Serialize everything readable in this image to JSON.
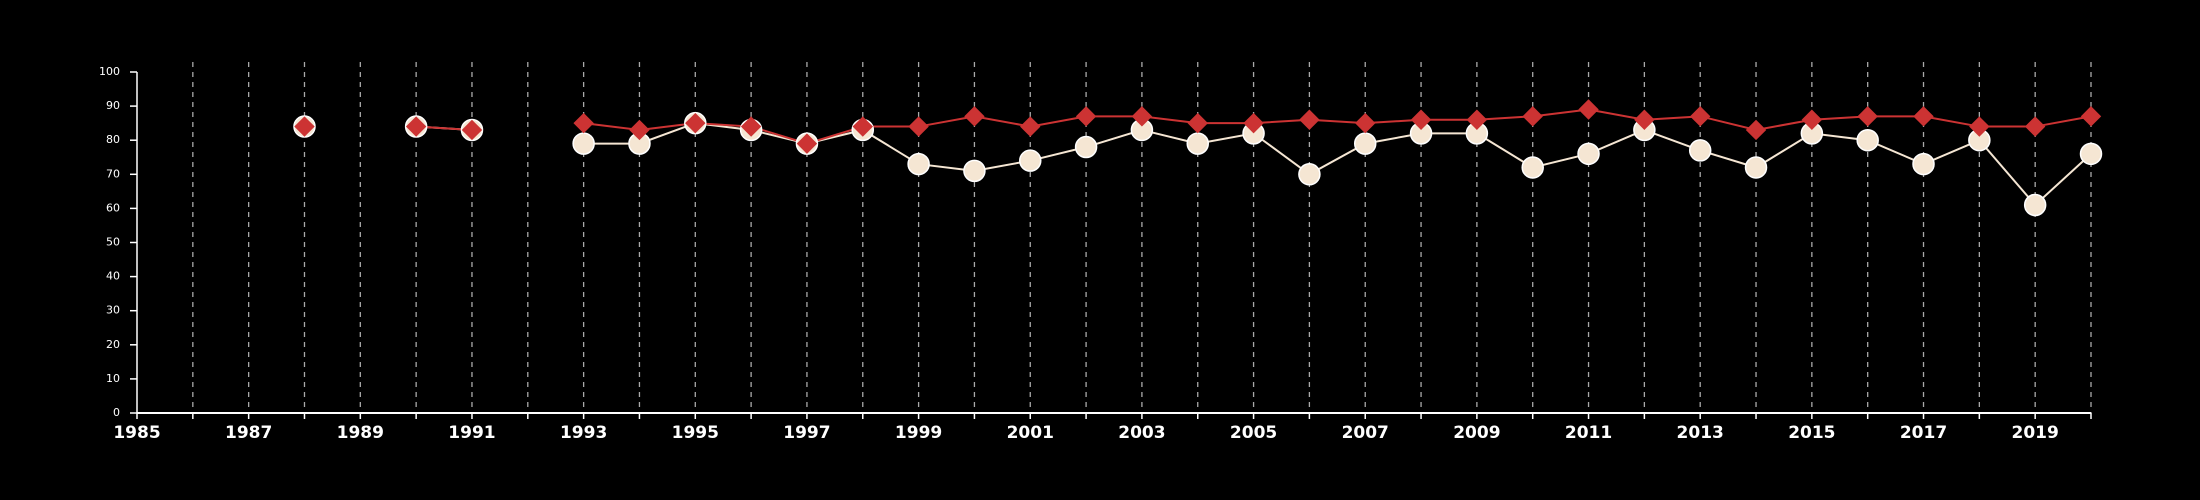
{
  "chart_data": {
    "type": "line",
    "xlim": [
      1985,
      2020
    ],
    "ylim": [
      0,
      100
    ],
    "yticks": [
      0,
      10,
      20,
      30,
      40,
      50,
      60,
      70,
      80,
      90,
      100
    ],
    "xticks": [
      1985,
      1987,
      1989,
      1991,
      1993,
      1995,
      1997,
      1999,
      2001,
      2003,
      2005,
      2007,
      2009,
      2011,
      2013,
      2015,
      2017,
      2019
    ],
    "grid": "vertical dashed at each year",
    "colors": {
      "background": "#000000",
      "axis": "#ffffff",
      "grid": "#aaaaaa",
      "series_red": "#cc3333",
      "series_cream": "#f5e6d3"
    },
    "series": [
      {
        "marker": "circle",
        "color": "#f5e6d3",
        "points": [
          {
            "x": 1988,
            "y": 84
          },
          {
            "x": 1990,
            "y": 84
          },
          {
            "x": 1991,
            "y": 83
          },
          {
            "x": 1993,
            "y": 79
          },
          {
            "x": 1994,
            "y": 79
          },
          {
            "x": 1995,
            "y": 85
          },
          {
            "x": 1996,
            "y": 83
          },
          {
            "x": 1997,
            "y": 79
          },
          {
            "x": 1998,
            "y": 83
          },
          {
            "x": 1999,
            "y": 73
          },
          {
            "x": 2000,
            "y": 71
          },
          {
            "x": 2001,
            "y": 74
          },
          {
            "x": 2002,
            "y": 78
          },
          {
            "x": 2003,
            "y": 83
          },
          {
            "x": 2004,
            "y": 79
          },
          {
            "x": 2005,
            "y": 82
          },
          {
            "x": 2006,
            "y": 70
          },
          {
            "x": 2007,
            "y": 79
          },
          {
            "x": 2008,
            "y": 82
          },
          {
            "x": 2009,
            "y": 82
          },
          {
            "x": 2010,
            "y": 72
          },
          {
            "x": 2011,
            "y": 76
          },
          {
            "x": 2012,
            "y": 83
          },
          {
            "x": 2013,
            "y": 77
          },
          {
            "x": 2014,
            "y": 72
          },
          {
            "x": 2015,
            "y": 82
          },
          {
            "x": 2016,
            "y": 80
          },
          {
            "x": 2017,
            "y": 73
          },
          {
            "x": 2018,
            "y": 80
          },
          {
            "x": 2019,
            "y": 61
          },
          {
            "x": 2020,
            "y": 76
          }
        ]
      },
      {
        "marker": "diamond",
        "color": "#cc3333",
        "points": [
          {
            "x": 1988,
            "y": 84
          },
          {
            "x": 1990,
            "y": 84
          },
          {
            "x": 1991,
            "y": 83
          },
          {
            "x": 1993,
            "y": 85
          },
          {
            "x": 1994,
            "y": 83
          },
          {
            "x": 1995,
            "y": 85
          },
          {
            "x": 1996,
            "y": 84
          },
          {
            "x": 1997,
            "y": 79
          },
          {
            "x": 1998,
            "y": 84
          },
          {
            "x": 1999,
            "y": 84
          },
          {
            "x": 2000,
            "y": 87
          },
          {
            "x": 2001,
            "y": 84
          },
          {
            "x": 2002,
            "y": 87
          },
          {
            "x": 2003,
            "y": 87
          },
          {
            "x": 2004,
            "y": 85
          },
          {
            "x": 2005,
            "y": 85
          },
          {
            "x": 2006,
            "y": 86
          },
          {
            "x": 2007,
            "y": 85
          },
          {
            "x": 2008,
            "y": 86
          },
          {
            "x": 2009,
            "y": 86
          },
          {
            "x": 2010,
            "y": 87
          },
          {
            "x": 2011,
            "y": 89
          },
          {
            "x": 2012,
            "y": 86
          },
          {
            "x": 2013,
            "y": 87
          },
          {
            "x": 2014,
            "y": 83
          },
          {
            "x": 2015,
            "y": 86
          },
          {
            "x": 2016,
            "y": 87
          },
          {
            "x": 2017,
            "y": 87
          },
          {
            "x": 2018,
            "y": 84
          },
          {
            "x": 2019,
            "y": 84
          },
          {
            "x": 2020,
            "y": 87
          }
        ]
      }
    ]
  }
}
